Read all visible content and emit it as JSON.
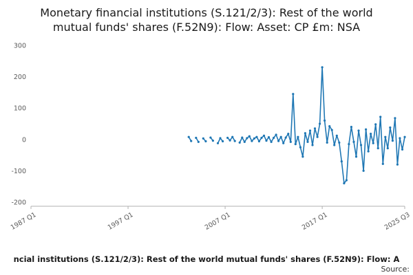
{
  "title": {
    "line1": "Monetary financial institutions (S.121/2/3): Rest of the world",
    "line2": "mutual funds' shares (F.52N9): Flow: Asset: CP £m: NSA"
  },
  "footer": {
    "caption": "ncial institutions (S.121/2/3): Rest of the world mutual funds' shares (F.52N9): Flow: A",
    "source_label": "Source:"
  },
  "colors": {
    "line": "#1f77b4",
    "axis": "#b0b0b0",
    "tick_text": "#595959"
  },
  "chart_data": {
    "type": "line",
    "title": "Monetary financial institutions (S.121/2/3): Rest of the world mutual funds' shares (F.52N9): Flow: Asset: CP £m: NSA",
    "unit": "£m",
    "ylim": [
      -200,
      300
    ],
    "y_ticks": [
      300,
      200,
      100,
      0,
      -100,
      -200
    ],
    "grid": false,
    "legend": "none",
    "x_axis": {
      "start": "1987 Q1",
      "end": "2025 Q3",
      "tick_labels": [
        "1987 Q1",
        "1997 Q1",
        "2007 Q1",
        "2017 Q1",
        "2025 Q3"
      ]
    },
    "series_start": "2003 Q2",
    "frequency": "quarterly",
    "values": [
      8,
      -5,
      null,
      5,
      -8,
      null,
      3,
      -6,
      null,
      6,
      -4,
      null,
      -12,
      4,
      -6,
      null,
      5,
      -3,
      8,
      -5,
      null,
      -10,
      6,
      -8,
      4,
      10,
      -5,
      3,
      8,
      -6,
      5,
      12,
      -4,
      7,
      -8,
      5,
      15,
      -5,
      8,
      -12,
      6,
      18,
      -8,
      145,
      -15,
      8,
      -25,
      -55,
      20,
      -8,
      28,
      -18,
      35,
      8,
      50,
      230,
      60,
      -10,
      42,
      30,
      -18,
      12,
      -10,
      -70,
      -140,
      -130,
      -15,
      40,
      -8,
      -55,
      28,
      -18,
      -100,
      32,
      -38,
      18,
      -12,
      48,
      -28,
      72,
      -78,
      8,
      -28,
      38,
      -4,
      68,
      -80,
      4,
      -32,
      8
    ]
  }
}
